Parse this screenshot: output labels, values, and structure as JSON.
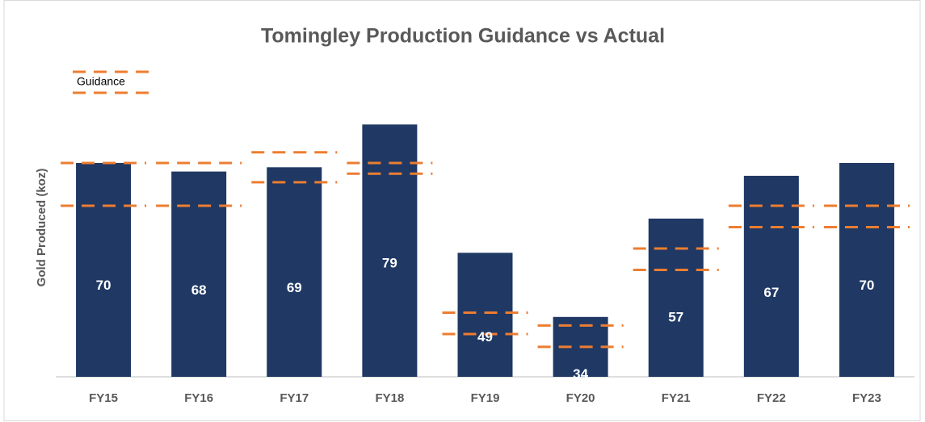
{
  "chart_data": {
    "type": "bar",
    "title": "Tomingley Production Guidance vs Actual",
    "y_label": "Gold Produced (koz)",
    "categories": [
      "FY15",
      "FY16",
      "FY17",
      "FY18",
      "FY19",
      "FY20",
      "FY21",
      "FY22",
      "FY23"
    ],
    "values": [
      70,
      68,
      69,
      79,
      49,
      34,
      57,
      67,
      70
    ],
    "color": "#1f3864",
    "guidance": {
      "name": "Guidance",
      "color": "#ed7d31",
      "high": [
        70,
        70,
        72.5,
        70,
        35,
        32,
        50,
        60,
        60
      ],
      "low": [
        60,
        60,
        65.5,
        67.5,
        30,
        27,
        45,
        55,
        55
      ]
    },
    "ylim": [
      20,
      90
    ]
  }
}
